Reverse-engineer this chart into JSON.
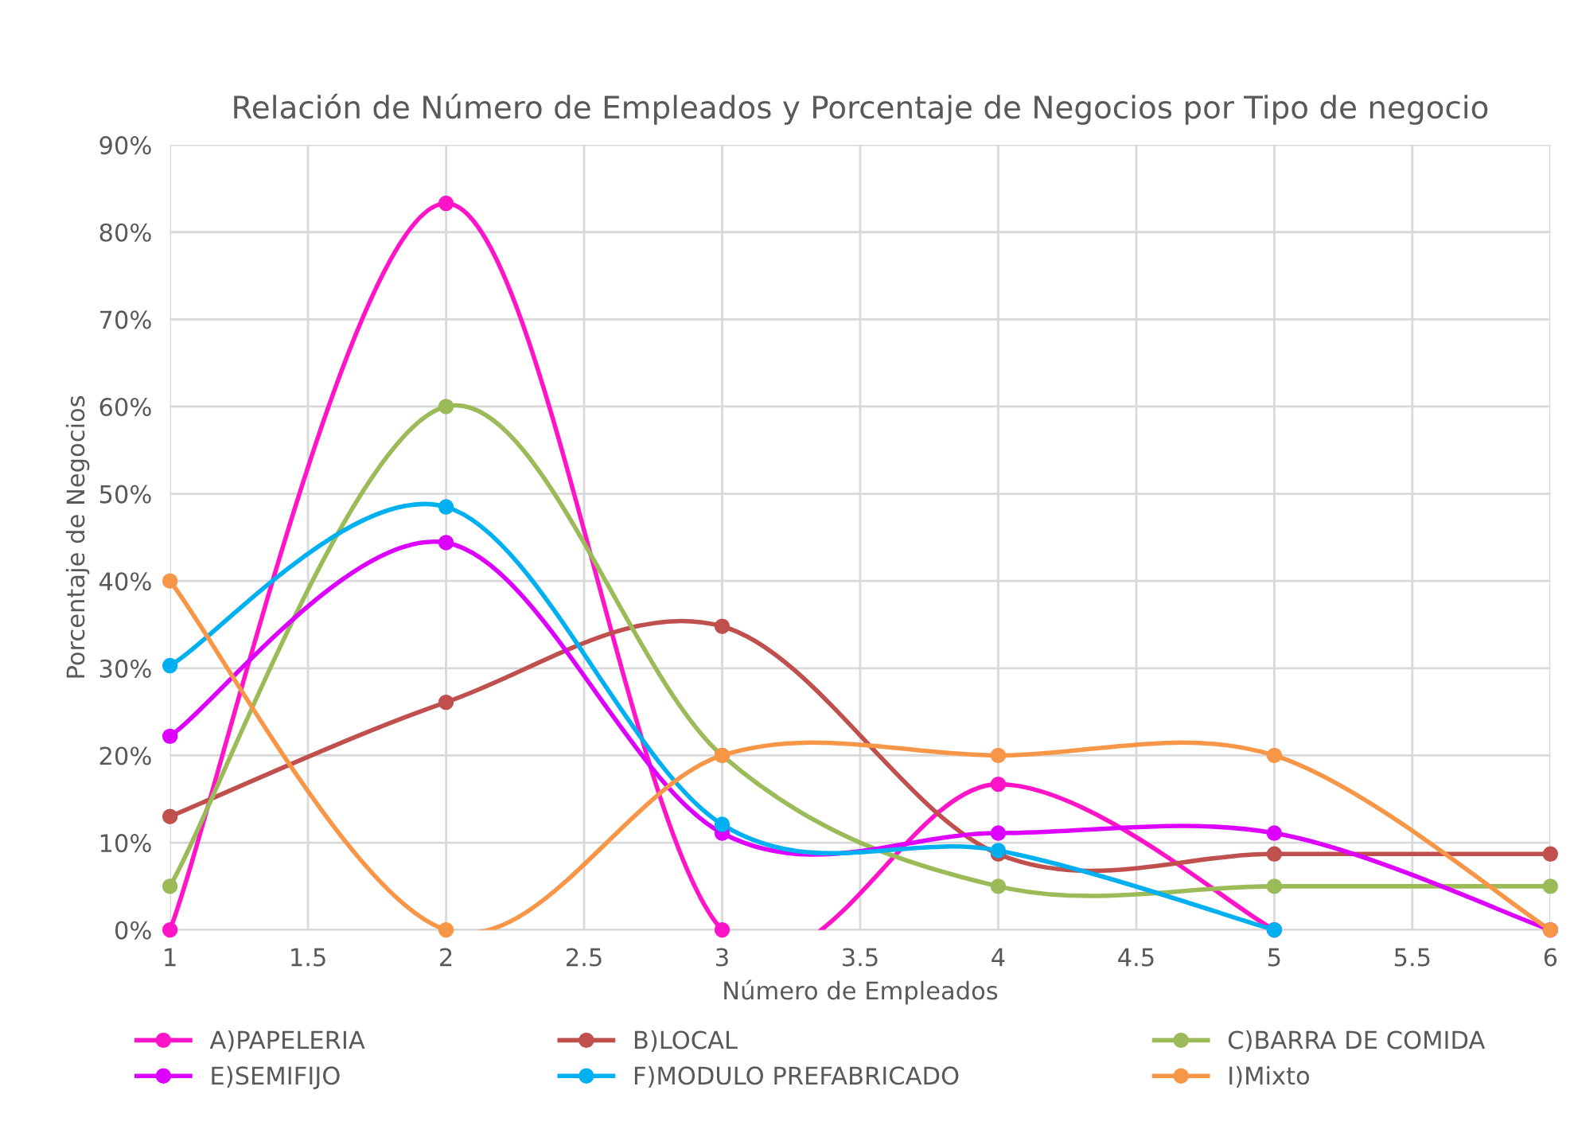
{
  "chart_data": {
    "type": "line",
    "title": "Relación de Número de Empleados y Porcentaje de Negocios por Tipo de negocio",
    "xlabel": "Número de Empleados",
    "ylabel": "Porcentaje de Negocios",
    "series": [
      {
        "name": "A)PAPELERIA",
        "color": "#ff14c8",
        "x": [
          1,
          2,
          3,
          4,
          5
        ],
        "values": [
          0,
          83.3,
          0,
          16.7,
          0
        ]
      },
      {
        "name": "B)LOCAL",
        "color": "#c0504d",
        "x": [
          1,
          2,
          3,
          4,
          5,
          6
        ],
        "values": [
          13,
          26.1,
          34.8,
          8.7,
          8.7,
          8.7
        ]
      },
      {
        "name": "C)BARRA DE COMIDA",
        "color": "#9bbb59",
        "x": [
          1,
          2,
          3,
          4,
          5,
          6
        ],
        "values": [
          5,
          60,
          20,
          5,
          5,
          5
        ]
      },
      {
        "name": "E)SEMIFIJO",
        "color": "#dd00ff",
        "x": [
          1,
          2,
          3,
          4,
          5,
          6
        ],
        "values": [
          22.2,
          44.4,
          11.1,
          11.1,
          11.1,
          0
        ]
      },
      {
        "name": "F)MODULO PREFABRICADO",
        "color": "#00b0f0",
        "x": [
          1,
          2,
          3,
          4,
          5
        ],
        "values": [
          30.3,
          48.5,
          12.1,
          9.1,
          0
        ]
      },
      {
        "name": "I)Mixto",
        "color": "#f79646",
        "x": [
          1,
          2,
          3,
          4,
          5,
          6
        ],
        "values": [
          40,
          0,
          20,
          20,
          20,
          0
        ]
      }
    ],
    "xlim": [
      1,
      6
    ],
    "xticks": [
      1,
      1.5,
      2,
      2.5,
      3,
      3.5,
      4,
      4.5,
      5,
      5.5,
      6
    ],
    "ylim": [
      0,
      90
    ],
    "yticks": [
      {
        "value": 0,
        "label": "0%"
      },
      {
        "value": 10,
        "label": "10%"
      },
      {
        "value": 20,
        "label": "20%"
      },
      {
        "value": 30,
        "label": "30%"
      },
      {
        "value": 40,
        "label": "40%"
      },
      {
        "value": 50,
        "label": "50%"
      },
      {
        "value": 60,
        "label": "60%"
      },
      {
        "value": 70,
        "label": "70%"
      },
      {
        "value": 80,
        "label": "80%"
      },
      {
        "value": 90,
        "label": "90%"
      }
    ],
    "grid": true,
    "legend": "bottom",
    "marker": "circle",
    "line_style": "solid"
  }
}
